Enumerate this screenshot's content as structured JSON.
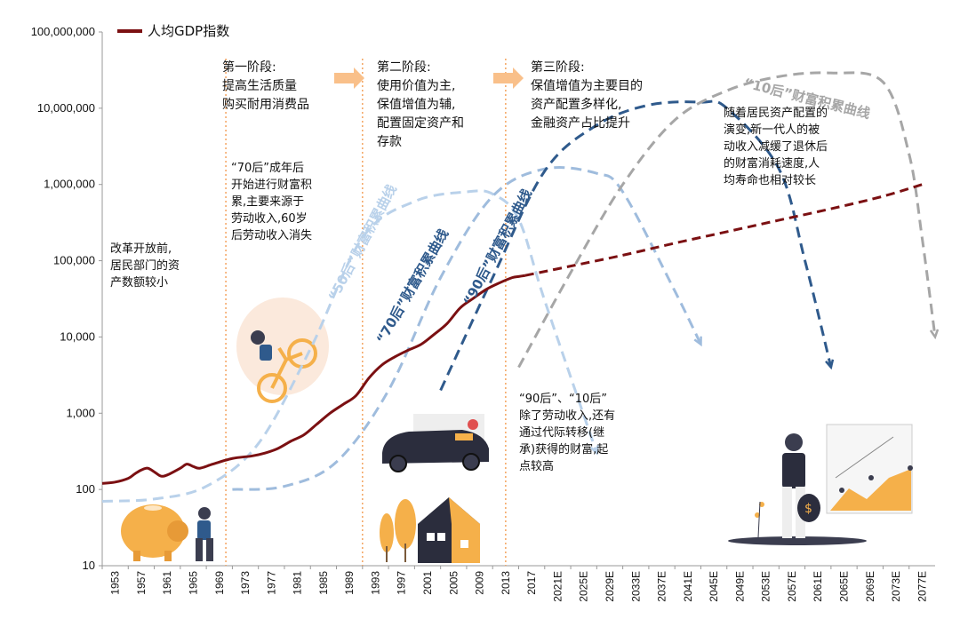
{
  "chart_data": {
    "type": "line",
    "legend": {
      "label": "人均GDP指数",
      "color": "#7b1012",
      "placement": "top-left"
    },
    "y_scale": "log",
    "ylim": [
      10,
      100000000
    ],
    "y_ticks": [
      10,
      100,
      1000,
      10000,
      100000,
      1000000,
      10000000,
      100000000
    ],
    "y_tick_labels": [
      "10",
      "100",
      "1,000",
      "10,000",
      "100,000",
      "1,000,000",
      "10,000,000",
      "100,000,000"
    ],
    "x_tick_labels": [
      "1953",
      "1957",
      "1961",
      "1965",
      "1969",
      "1973",
      "1977",
      "1981",
      "1985",
      "1989",
      "1993",
      "1997",
      "2001",
      "2005",
      "2009",
      "2013",
      "2017",
      "2021E",
      "2025E",
      "2029E",
      "2033E",
      "2037E",
      "2041E",
      "2045E",
      "2049E",
      "2053E",
      "2057E",
      "2061E",
      "2065E",
      "2069E",
      "2073E",
      "2077E"
    ],
    "series": [
      {
        "name": "人均GDP指数",
        "color": "#7b1012",
        "style": "solid",
        "x": [
          1953,
          1955,
          1957,
          1958,
          1959,
          1960,
          1961,
          1962,
          1963,
          1965,
          1966,
          1967,
          1968,
          1970,
          1973,
          1976,
          1978,
          1980,
          1982,
          1984,
          1986,
          1988,
          1990,
          1992,
          1994,
          1996,
          1998,
          2000,
          2002,
          2004,
          2006,
          2008,
          2010,
          2012,
          2014,
          2016,
          2017,
          2018
        ],
        "values": [
          120,
          125,
          140,
          160,
          180,
          190,
          170,
          150,
          155,
          190,
          215,
          200,
          190,
          215,
          255,
          275,
          300,
          345,
          430,
          520,
          720,
          1000,
          1300,
          1700,
          2900,
          4300,
          5500,
          6700,
          8000,
          10800,
          15000,
          24000,
          32000,
          42000,
          51000,
          60000,
          62000,
          64000
        ]
      },
      {
        "name": "人均GDP指数 (E)",
        "color": "#7b1012",
        "style": "dashed",
        "x": [
          2018,
          2025,
          2033,
          2041,
          2049,
          2057,
          2065,
          2073,
          2079
        ],
        "values": [
          64000,
          85000,
          118000,
          170000,
          240000,
          340000,
          480000,
          700000,
          1000000
        ]
      }
    ],
    "curves": [
      {
        "label": "“50后”财富积累曲线",
        "color": "#b9d1ea",
        "x": [
          1953,
          1961,
          1969,
          1977,
          1985,
          1993,
          2001,
          2009,
          2013,
          2017,
          2021,
          2029
        ],
        "values": [
          70,
          75,
          110,
          400,
          7000,
          200000,
          600000,
          800000,
          750000,
          350000,
          30000,
          300
        ]
      },
      {
        "label": "“70后”财富积累曲线",
        "color": "#9fbcdd",
        "x": [
          1973,
          1981,
          1989,
          1997,
          2005,
          2013,
          2021,
          2029,
          2033,
          2041,
          2045
        ],
        "values": [
          100,
          110,
          230,
          2000,
          60000,
          700000,
          1600000,
          1400000,
          800000,
          40000,
          8000
        ]
      },
      {
        "label": "“90后”财富积累曲线",
        "color": "#2f5a8c",
        "x": [
          2005,
          2013,
          2021,
          2029,
          2037,
          2045,
          2049,
          2057,
          2061,
          2065
        ],
        "values": [
          2000,
          60000,
          1500000,
          6000000,
          11000000,
          12000000,
          10000000,
          1600000,
          100000,
          4000
        ]
      },
      {
        "label": "“10后”财富积累曲线",
        "color": "#a6a6a6",
        "x": [
          2017,
          2025,
          2033,
          2041,
          2049,
          2057,
          2065,
          2073,
          2077,
          2079,
          2081
        ],
        "values": [
          4000,
          70000,
          1000000,
          7000000,
          17000000,
          26000000,
          29000000,
          22000000,
          2500000,
          200000,
          10000
        ]
      }
    ],
    "phase_dividers": [
      1972,
      1993,
      2015
    ],
    "annotations": {
      "phase1": "第一阶段:\n提高生活质量\n购买耐用消费品",
      "phase2": "第二阶段:\n使用价值为主,\n保值增值为辅,\n配置固定资产和\n存款",
      "phase3": "第三阶段:\n保值增值为主要目的\n资产配置多样化,\n金融资产占比提升",
      "pre_reform": "改革开放前,\n居民部门的资\n产数额较小",
      "after70": "“70后”成年后\n开始进行财富积\n累,主要来源于\n劳动收入,60岁\n后劳动收入消失",
      "after90_10": "“90后”、“10后”\n除了劳动收入,还有\n通过代际转移(继\n承)获得的财富,起\n点较高",
      "new_gen": "随着居民资产配置的\n演变,新一代人的被\n动收入减缓了退休后\n的财富消耗速度,人\n均寿命也相对较长"
    },
    "curve_labels": {
      "c50": "“50后”财富积累曲线",
      "c70": "“70后”财富积累曲线",
      "c90": "“90后”财富积累曲线",
      "c10": "“10后”财富积累曲线"
    }
  },
  "colors": {
    "gdp": "#7b1012",
    "divider": "#f4a460",
    "arrow": "#f9c08a",
    "c50": "#b9d1ea",
    "c70": "#9fbcdd",
    "c90": "#2f5a8c",
    "c10": "#a6a6a6",
    "illustration_orange": "#f5b04a",
    "illustration_dark": "#3b3d4f"
  }
}
